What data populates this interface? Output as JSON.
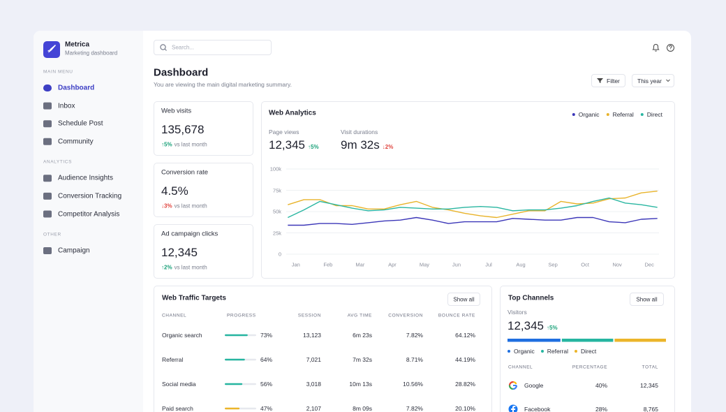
{
  "sidebar": {
    "brand": "Metrica",
    "tagline": "Marketing dashboard",
    "active": "Dashboard",
    "sections": [
      {
        "title": "MAIN MENU",
        "items": [
          "Dashboard",
          "Inbox",
          "Schedule Post",
          "Community"
        ]
      },
      {
        "title": "ANALYTICS",
        "items": [
          "Audience Insights",
          "Conversion Tracking",
          "Competitor Analysis"
        ]
      },
      {
        "title": "OTHER",
        "items": [
          "Campaign"
        ]
      }
    ]
  },
  "header": {
    "search_placeholder": "Search...",
    "title": "Dashboard",
    "subtitle": "You are viewing the main digital marketing summary.",
    "filter": "Filter",
    "period": "This year"
  },
  "stats": [
    {
      "label": "Web visits",
      "value": "135,678",
      "change": "↑5%",
      "change_color": "#1aa179",
      "note": "vs last month"
    },
    {
      "label": "Conversion rate",
      "value": "4.5%",
      "change": "↓3%",
      "change_color": "#e0443e",
      "note": "vs last month"
    },
    {
      "label": "Ad campaign clicks",
      "value": "12,345",
      "change": "↑2%",
      "change_color": "#1aa179",
      "note": "vs last month"
    }
  ],
  "chart_data": {
    "type": "line",
    "title": "Web Analytics",
    "kpis": [
      {
        "label": "Page views",
        "value": "12,345",
        "change": "↑5%",
        "change_color": "#1aa179"
      },
      {
        "label": "Visit durations",
        "value": "9m 32s",
        "change": "↓2%",
        "change_color": "#e0443e"
      }
    ],
    "x": [
      -0.25,
      0.25,
      0.75,
      1.25,
      1.75,
      2.25,
      2.75,
      3.25,
      3.75,
      4.25,
      4.75,
      5.25,
      5.75,
      6.25,
      6.75,
      7.25,
      7.75,
      8.25,
      8.75,
      9.25,
      9.75,
      10.25,
      10.75,
      11.25
    ],
    "xlim": [
      -0.3,
      11.3
    ],
    "xticks": [
      {
        "value": 0,
        "label": "Jan"
      },
      {
        "value": 1,
        "label": "Feb"
      },
      {
        "value": 2,
        "label": "Mar"
      },
      {
        "value": 3,
        "label": "Apr"
      },
      {
        "value": 4,
        "label": "May"
      },
      {
        "value": 5,
        "label": "Jun"
      },
      {
        "value": 6,
        "label": "Jul"
      },
      {
        "value": 7,
        "label": "Aug"
      },
      {
        "value": 8,
        "label": "Sep"
      },
      {
        "value": 9,
        "label": "Oct"
      },
      {
        "value": 10,
        "label": "Nov"
      },
      {
        "value": 11,
        "label": "Dec"
      }
    ],
    "ylim": [
      0,
      100000
    ],
    "yticks": [
      0,
      {
        "value": 25000,
        "label": "25k"
      },
      {
        "value": 50000,
        "label": "50k"
      },
      {
        "value": 75000,
        "label": "75k"
      },
      {
        "value": 100000,
        "label": "100k"
      }
    ],
    "grid": true,
    "legend": "top-right",
    "series": [
      {
        "name": "Organic",
        "color": "#3b36b8",
        "values": [
          34000,
          34000,
          36000,
          36000,
          35000,
          37000,
          39000,
          40000,
          43000,
          40000,
          36000,
          38000,
          38000,
          38000,
          42000,
          41000,
          40000,
          40000,
          43000,
          43000,
          38000,
          37000,
          41000,
          42000
        ]
      },
      {
        "name": "Referral",
        "color": "#e8b32a",
        "values": [
          58000,
          64000,
          64000,
          57000,
          57000,
          53000,
          53000,
          58000,
          62000,
          55000,
          52000,
          48000,
          45000,
          43000,
          47000,
          51000,
          51000,
          62000,
          59000,
          60000,
          65000,
          66000,
          72000,
          74000
        ]
      },
      {
        "name": "Direct",
        "color": "#29b6a1",
        "values": [
          43000,
          52000,
          62000,
          58000,
          54000,
          51000,
          52000,
          55000,
          54000,
          53000,
          53000,
          55000,
          56000,
          55000,
          51000,
          52000,
          52000,
          54000,
          57000,
          62000,
          66000,
          60000,
          58000,
          55000
        ]
      }
    ]
  },
  "traffic": {
    "title": "Web Traffic Targets",
    "action": "Show all",
    "columns": [
      "CHANNEL",
      "PROGRESS",
      "SESSION",
      "AVG TIME",
      "CONVERSION",
      "BOUNCE RATE"
    ],
    "rows": [
      {
        "channel": "Organic search",
        "progress": 73,
        "progress_label": "73%",
        "progress_color": "#26b5a0",
        "session": "13,123",
        "avg_time": "6m 23s",
        "conversion": "7.82%",
        "bounce_rate": "64.12%"
      },
      {
        "channel": "Referral",
        "progress": 64,
        "progress_label": "64%",
        "progress_color": "#26b5a0",
        "session": "7,021",
        "avg_time": "7m 32s",
        "conversion": "8.71%",
        "bounce_rate": "44.19%"
      },
      {
        "channel": "Social media",
        "progress": 56,
        "progress_label": "56%",
        "progress_color": "#26b5a0",
        "session": "3,018",
        "avg_time": "10m 13s",
        "conversion": "10.56%",
        "bounce_rate": "28.82%"
      },
      {
        "channel": "Paid search",
        "progress": 47,
        "progress_label": "47%",
        "progress_color": "#ecb52a",
        "session": "2,107",
        "avg_time": "8m 09s",
        "conversion": "7.82%",
        "bounce_rate": "20.10%"
      }
    ]
  },
  "channels": {
    "title": "Top Channels",
    "action": "Show all",
    "visitors_label": "Visitors",
    "visitors": "12,345",
    "change": "↑5%",
    "change_color": "#1aa179",
    "segments": [
      {
        "name": "Organic",
        "color": "#1f6fe0",
        "share": 34
      },
      {
        "name": "Referral",
        "color": "#26b5a0",
        "share": 33
      },
      {
        "name": "Direct",
        "color": "#ecb52a",
        "share": 33
      }
    ],
    "columns": [
      "CHANNEL",
      "PERCENTAGE",
      "TOTAL"
    ],
    "rows": [
      {
        "channel": "Google",
        "percentage": "40%",
        "total": "12,345"
      },
      {
        "channel": "Facebook",
        "percentage": "28%",
        "total": "8,765"
      }
    ]
  }
}
